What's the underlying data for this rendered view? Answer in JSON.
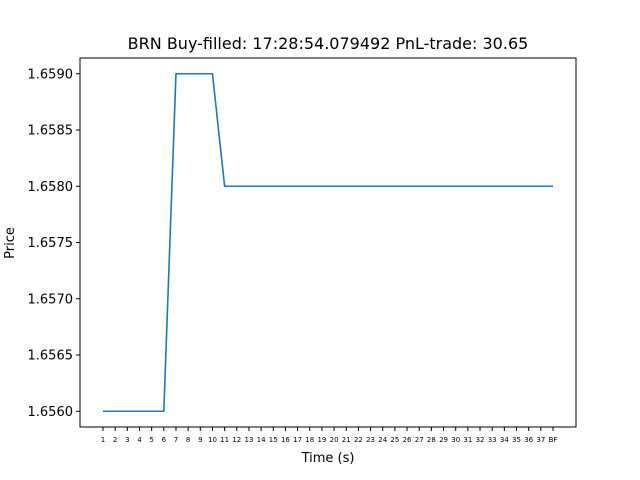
{
  "chart_data": {
    "type": "line",
    "title": "BRN  Buy-filled:  17:28:54.079492  PnL-trade:  30.65",
    "xlabel": "Time (s)",
    "ylabel": "Price",
    "categories": [
      "1",
      "2",
      "3",
      "4",
      "5",
      "6",
      "7",
      "8",
      "9",
      "10",
      "11",
      "12",
      "13",
      "14",
      "15",
      "16",
      "17",
      "18",
      "19",
      "20",
      "21",
      "22",
      "23",
      "24",
      "25",
      "26",
      "27",
      "28",
      "29",
      "30",
      "31",
      "32",
      "33",
      "34",
      "35",
      "36",
      "37",
      "BF"
    ],
    "series": [
      {
        "values": [
          1.656,
          1.656,
          1.656,
          1.656,
          1.656,
          1.656,
          1.659,
          1.659,
          1.659,
          1.659,
          1.658,
          1.658,
          1.658,
          1.658,
          1.658,
          1.658,
          1.658,
          1.658,
          1.658,
          1.658,
          1.658,
          1.658,
          1.658,
          1.658,
          1.658,
          1.658,
          1.658,
          1.658,
          1.658,
          1.658,
          1.658,
          1.658,
          1.658,
          1.658,
          1.658,
          1.658,
          1.658,
          1.658
        ],
        "color": "#1f77b4"
      }
    ],
    "yticks": [
      "1.6560",
      "1.6565",
      "1.6570",
      "1.6575",
      "1.6580",
      "1.6585",
      "1.6590"
    ],
    "ylim": [
      1.65586,
      1.65914
    ],
    "grid": false,
    "legend": "none"
  }
}
